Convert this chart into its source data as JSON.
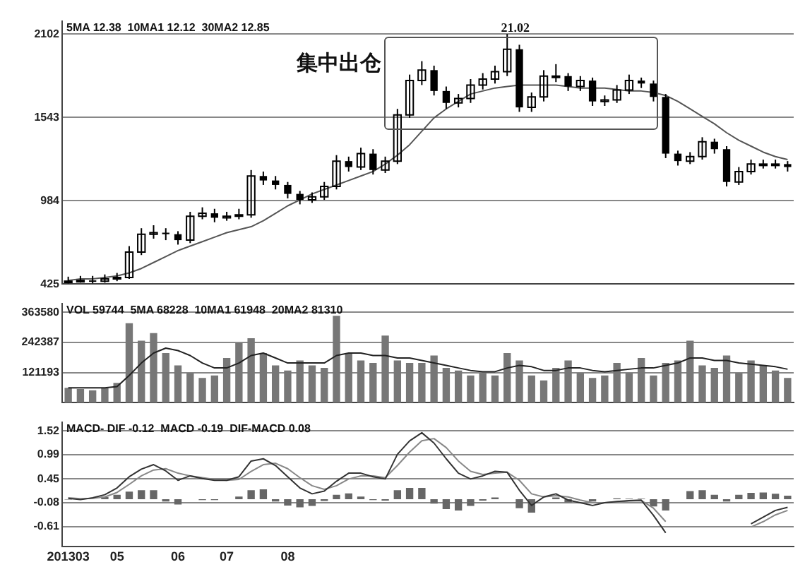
{
  "chart_data": [
    {
      "type": "candlestick",
      "title": "5MA 12.38  10MA1 12.12  30MA2 12.85",
      "annotations": [
        "集中出仓",
        "21.02"
      ],
      "color": "#000000",
      "categories": [
        null,
        null,
        null,
        null,
        null,
        null,
        null,
        null,
        null,
        null,
        null,
        null,
        null,
        null,
        null,
        null,
        null,
        null,
        null,
        null,
        null,
        null,
        null,
        null,
        null,
        null,
        null,
        null,
        null,
        null,
        null,
        null,
        null,
        null,
        null,
        null,
        null,
        null,
        null,
        null,
        null,
        null,
        null,
        null,
        null,
        null,
        null,
        null,
        null,
        null,
        null,
        null,
        null,
        null,
        null,
        null,
        null,
        null,
        null,
        null
      ],
      "ohlc": [
        [
          440,
          475,
          430,
          445
        ],
        [
          445,
          480,
          435,
          450
        ],
        [
          450,
          480,
          430,
          445
        ],
        [
          445,
          490,
          435,
          460
        ],
        [
          460,
          500,
          445,
          470
        ],
        [
          470,
          680,
          460,
          640
        ],
        [
          640,
          800,
          620,
          760
        ],
        [
          760,
          820,
          730,
          770
        ],
        [
          770,
          800,
          720,
          760
        ],
        [
          760,
          780,
          690,
          720
        ],
        [
          720,
          910,
          700,
          880
        ],
        [
          880,
          940,
          860,
          900
        ],
        [
          900,
          930,
          840,
          870
        ],
        [
          870,
          910,
          850,
          880
        ],
        [
          880,
          930,
          860,
          890
        ],
        [
          890,
          1190,
          870,
          1150
        ],
        [
          1150,
          1180,
          1090,
          1120
        ],
        [
          1120,
          1150,
          1060,
          1090
        ],
        [
          1090,
          1110,
          1000,
          1030
        ],
        [
          1030,
          1050,
          960,
          990
        ],
        [
          990,
          1040,
          970,
          1010
        ],
        [
          1010,
          1110,
          990,
          1080
        ],
        [
          1080,
          1290,
          1060,
          1250
        ],
        [
          1250,
          1280,
          1180,
          1210
        ],
        [
          1210,
          1340,
          1190,
          1300
        ],
        [
          1300,
          1330,
          1160,
          1190
        ],
        [
          1190,
          1280,
          1170,
          1250
        ],
        [
          1250,
          1600,
          1230,
          1560
        ],
        [
          1560,
          1830,
          1540,
          1790
        ],
        [
          1790,
          1920,
          1760,
          1860
        ],
        [
          1860,
          1890,
          1690,
          1720
        ],
        [
          1720,
          1750,
          1600,
          1640
        ],
        [
          1640,
          1700,
          1610,
          1670
        ],
        [
          1670,
          1800,
          1640,
          1760
        ],
        [
          1760,
          1840,
          1730,
          1800
        ],
        [
          1800,
          1890,
          1770,
          1850
        ],
        [
          1850,
          2102,
          1820,
          2000
        ],
        [
          2000,
          2030,
          1580,
          1610
        ],
        [
          1610,
          1710,
          1580,
          1680
        ],
        [
          1680,
          1860,
          1650,
          1820
        ],
        [
          1820,
          1900,
          1780,
          1820
        ],
        [
          1820,
          1840,
          1720,
          1750
        ],
        [
          1750,
          1820,
          1720,
          1790
        ],
        [
          1790,
          1810,
          1620,
          1650
        ],
        [
          1650,
          1690,
          1620,
          1660
        ],
        [
          1660,
          1760,
          1640,
          1726
        ],
        [
          1726,
          1830,
          1700,
          1790
        ],
        [
          1790,
          1810,
          1740,
          1770
        ],
        [
          1770,
          1790,
          1650,
          1680
        ],
        [
          1680,
          1700,
          1270,
          1300
        ],
        [
          1300,
          1320,
          1220,
          1250
        ],
        [
          1250,
          1310,
          1230,
          1280
        ],
        [
          1280,
          1410,
          1260,
          1380
        ],
        [
          1380,
          1400,
          1300,
          1330
        ],
        [
          1330,
          1350,
          1080,
          1110
        ],
        [
          1110,
          1210,
          1090,
          1180
        ],
        [
          1180,
          1260,
          1160,
          1230
        ],
        [
          1230,
          1260,
          1200,
          1230
        ],
        [
          1230,
          1260,
          1200,
          1230
        ],
        [
          1230,
          1250,
          1180,
          1210
        ]
      ],
      "series": [
        {
          "type": "line",
          "color": "#555555",
          "values": [
            450,
            460,
            460,
            470,
            480,
            500,
            530,
            570,
            610,
            650,
            680,
            710,
            740,
            770,
            790,
            810,
            850,
            900,
            950,
            990,
            1030,
            1060,
            1090,
            1120,
            1150,
            1180,
            1230,
            1290,
            1360,
            1450,
            1540,
            1600,
            1650,
            1700,
            1720,
            1740,
            1750,
            1760,
            1760,
            1760,
            1760,
            1750,
            1740,
            1740,
            1740,
            1730,
            1720,
            1720,
            1710,
            1690,
            1650,
            1600,
            1550,
            1500,
            1440,
            1390,
            1350,
            1310,
            1280,
            1260
          ]
        }
      ],
      "ylim": [
        425,
        2190
      ],
      "yticks": [
        425,
        984,
        1543,
        2102
      ],
      "grid": "y",
      "tick_labels": "y"
    },
    {
      "type": "bar",
      "title": "VOL 59744  5MA 68228  10MA1 61948  20MA2 81310",
      "categories": [
        null,
        null,
        null,
        null,
        null,
        null,
        null,
        null,
        null,
        null,
        null,
        null,
        null,
        null,
        null,
        null,
        null,
        null,
        null,
        null,
        null,
        null,
        null,
        null,
        null,
        null,
        null,
        null,
        null,
        null,
        null,
        null,
        null,
        null,
        null,
        null,
        null,
        null,
        null,
        null,
        null,
        null,
        null,
        null,
        null,
        null,
        null,
        null,
        null,
        null,
        null,
        null,
        null,
        null,
        null,
        null,
        null,
        null,
        null,
        null
      ],
      "series": [
        {
          "type": "bar",
          "color": "#777777",
          "values": [
            60000,
            55000,
            50000,
            60000,
            80000,
            320000,
            250000,
            280000,
            200000,
            150000,
            120000,
            100000,
            110000,
            180000,
            240000,
            260000,
            200000,
            150000,
            130000,
            170000,
            150000,
            140000,
            350000,
            200000,
            170000,
            160000,
            270000,
            170000,
            160000,
            160000,
            190000,
            140000,
            130000,
            110000,
            120000,
            110000,
            200000,
            170000,
            110000,
            90000,
            140000,
            170000,
            120000,
            100000,
            110000,
            160000,
            120000,
            180000,
            110000,
            160000,
            170000,
            250000,
            150000,
            140000,
            190000,
            120000,
            170000,
            150000,
            130000,
            100000
          ]
        },
        {
          "type": "line",
          "color": "#222222",
          "values": [
            60000,
            60000,
            60000,
            60000,
            65000,
            110000,
            160000,
            200000,
            220000,
            210000,
            190000,
            160000,
            140000,
            140000,
            160000,
            190000,
            200000,
            180000,
            160000,
            160000,
            160000,
            160000,
            190000,
            200000,
            200000,
            190000,
            190000,
            180000,
            180000,
            170000,
            160000,
            150000,
            140000,
            130000,
            125000,
            125000,
            140000,
            150000,
            145000,
            130000,
            130000,
            140000,
            140000,
            130000,
            125000,
            130000,
            135000,
            140000,
            140000,
            150000,
            160000,
            180000,
            180000,
            170000,
            170000,
            160000,
            155000,
            150000,
            145000,
            135000
          ]
        }
      ],
      "ylim": [
        0,
        400000
      ],
      "yticks": [
        121193,
        242387,
        363580
      ],
      "grid": "y",
      "tick_labels": "y"
    },
    {
      "type": "line",
      "title": "MACD- DIF -0.12  MACD -0.19  DIF-MACD 0.08",
      "categories": [
        "201303",
        null,
        null,
        null,
        "05",
        null,
        null,
        null,
        null,
        "06",
        null,
        null,
        null,
        "07",
        null,
        null,
        null,
        null,
        "08",
        null,
        null,
        null,
        null,
        null,
        null,
        null,
        null,
        null,
        null,
        null,
        null,
        null,
        null,
        null,
        null,
        null,
        null,
        null,
        null,
        null,
        null,
        null,
        null,
        null,
        null,
        null,
        null,
        null,
        null,
        null,
        null,
        null,
        null,
        null,
        null,
        null,
        null,
        null,
        null,
        null
      ],
      "series": [
        {
          "type": "line",
          "color": "#333333",
          "values": [
            0.02,
            -0.01,
            0.03,
            0.1,
            0.25,
            0.5,
            0.67,
            0.77,
            0.63,
            0.42,
            0.52,
            0.46,
            0.42,
            0.42,
            0.5,
            0.85,
            0.9,
            0.75,
            0.5,
            0.25,
            0.12,
            0.18,
            0.4,
            0.58,
            0.58,
            0.5,
            0.45,
            1.0,
            1.3,
            1.48,
            1.25,
            0.9,
            0.58,
            0.45,
            0.52,
            0.62,
            0.6,
            0.2,
            -0.14,
            0.05,
            0.12,
            -0.02,
            -0.08,
            -0.14,
            -0.08,
            -0.05,
            -0.03,
            -0.02,
            -0.36,
            -0.75,
            null,
            null,
            null,
            null,
            null,
            null,
            -0.55,
            -0.4,
            -0.25,
            -0.18
          ]
        },
        {
          "type": "line",
          "color": "#888888",
          "values": [
            0.03,
            0.01,
            0.02,
            0.05,
            0.15,
            0.33,
            0.52,
            0.65,
            0.68,
            0.58,
            0.52,
            0.48,
            0.44,
            0.42,
            0.44,
            0.62,
            0.77,
            0.8,
            0.68,
            0.48,
            0.3,
            0.22,
            0.3,
            0.45,
            0.52,
            0.52,
            0.48,
            0.75,
            1.05,
            1.3,
            1.35,
            1.15,
            0.85,
            0.62,
            0.55,
            0.58,
            0.6,
            0.42,
            0.12,
            0.05,
            0.08,
            0.05,
            -0.02,
            -0.08,
            -0.08,
            -0.06,
            -0.04,
            -0.03,
            -0.2,
            -0.5,
            null,
            null,
            null,
            null,
            null,
            null,
            -0.62,
            -0.5,
            -0.35,
            -0.25
          ]
        },
        {
          "type": "bar",
          "color": "#666666",
          "values": [
            -0.01,
            null,
            null,
            0.05,
            0.1,
            0.17,
            0.2,
            0.2,
            -0.05,
            -0.12,
            0.0,
            -0.02,
            -0.02,
            0.0,
            0.06,
            0.2,
            0.22,
            -0.05,
            -0.14,
            -0.18,
            -0.15,
            -0.04,
            0.1,
            0.13,
            0.06,
            -0.02,
            -0.03,
            0.2,
            0.25,
            0.25,
            -0.1,
            -0.22,
            -0.25,
            -0.15,
            -0.03,
            0.04,
            0.0,
            -0.2,
            -0.3,
            0.0,
            0.04,
            -0.07,
            null,
            -0.05,
            0.0,
            0.02,
            0.01,
            0.01,
            -0.16,
            -0.25,
            null,
            0.18,
            0.2,
            0.1,
            -0.05,
            0.1,
            0.14,
            0.15,
            0.12,
            0.08
          ]
        }
      ],
      "ylim": [
        -1.06,
        1.72
      ],
      "yticks": [
        1.52,
        0.99,
        0.45,
        -0.08,
        -0.61
      ],
      "grid": "y"
    }
  ]
}
